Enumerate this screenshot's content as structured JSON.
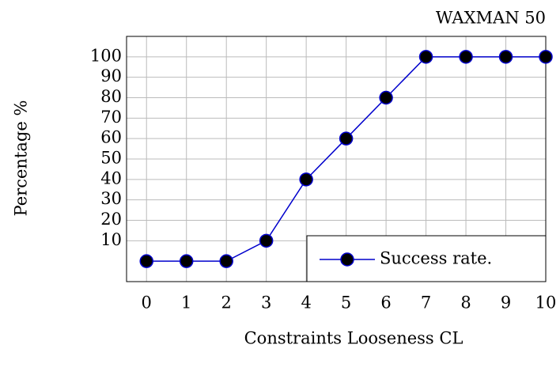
{
  "chart_data": {
    "type": "line",
    "title": "WAXMAN 50",
    "xlabel": "Constraints Looseness CL",
    "ylabel": "Percentage %",
    "x": [
      0,
      1,
      2,
      3,
      4,
      5,
      6,
      7,
      8,
      9,
      10
    ],
    "series": [
      {
        "name": "Success rate.",
        "color": "#0000cc",
        "marker_color": "#000000",
        "values": [
          0,
          0,
          0,
          10,
          40,
          60,
          80,
          100,
          100,
          100,
          100
        ]
      }
    ],
    "xlim": [
      -0.5,
      10
    ],
    "ylim": [
      -10,
      110
    ],
    "xticks": [
      0,
      1,
      2,
      3,
      4,
      5,
      6,
      7,
      8,
      9,
      10
    ],
    "yticks": [
      10,
      20,
      30,
      40,
      50,
      60,
      70,
      80,
      90,
      100
    ],
    "grid": true,
    "legend": "lower right"
  }
}
